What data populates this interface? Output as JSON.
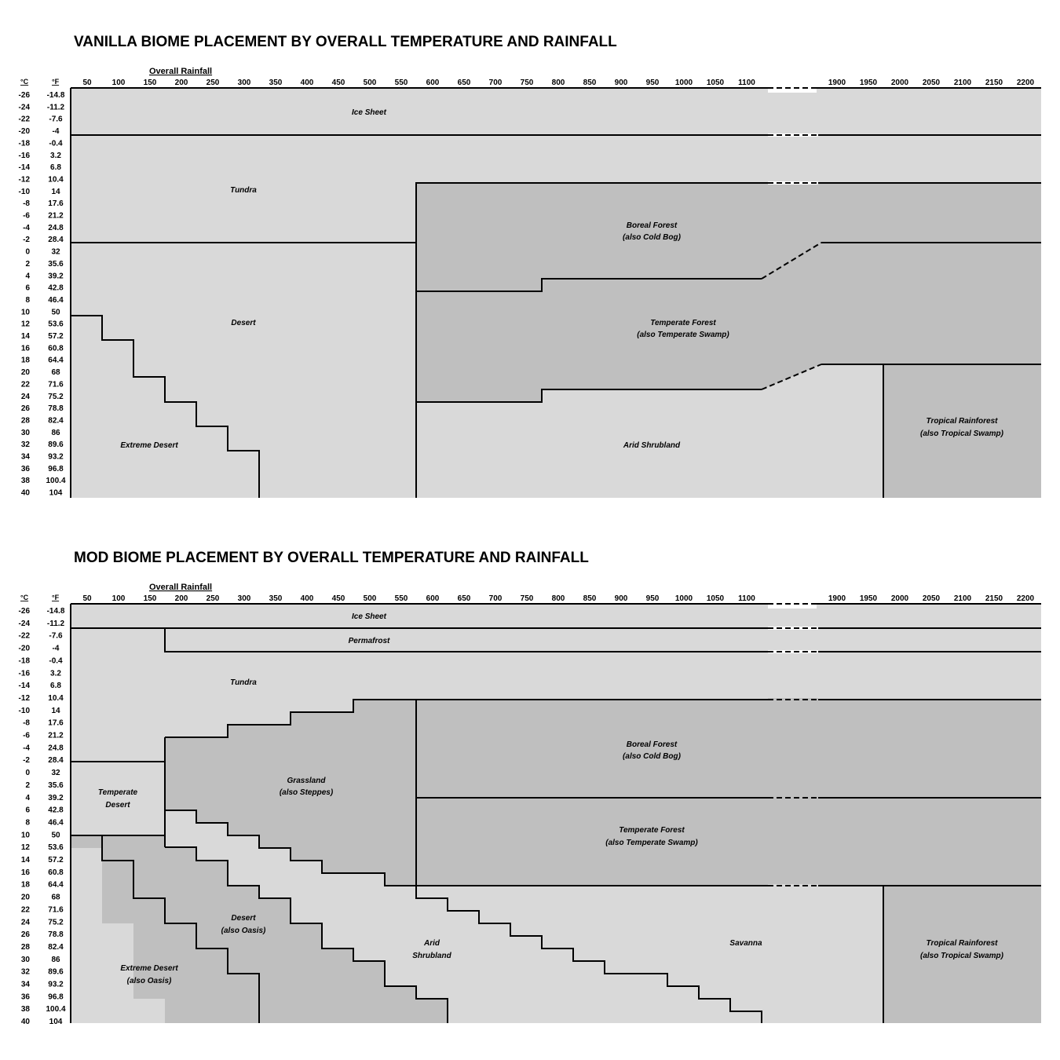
{
  "vanilla": {
    "title": "VANILLA BIOME PLACEMENT BY OVERALL TEMPERATURE AND RAINFALL",
    "rain_title": "Overall Rainfall",
    "unit_c": "°C",
    "unit_f": "°F",
    "celsius": [
      "-26",
      "-24",
      "-22",
      "-20",
      "-18",
      "-16",
      "-14",
      "-12",
      "-10",
      "-8",
      "-6",
      "-4",
      "-2",
      "0",
      "2",
      "4",
      "6",
      "8",
      "10",
      "12",
      "14",
      "16",
      "18",
      "20",
      "22",
      "24",
      "26",
      "28",
      "30",
      "32",
      "34",
      "36",
      "38",
      "40"
    ],
    "fahrenheit": [
      "-14.8",
      "-11.2",
      "-7.6",
      "-4",
      "-0.4",
      "3.2",
      "6.8",
      "10.4",
      "14",
      "17.6",
      "21.2",
      "24.8",
      "28.4",
      "32",
      "35.6",
      "39.2",
      "42.8",
      "46.4",
      "50",
      "53.6",
      "57.2",
      "60.8",
      "64.4",
      "68",
      "71.6",
      "75.2",
      "78.8",
      "82.4",
      "86",
      "89.6",
      "93.2",
      "96.8",
      "100.4",
      "104"
    ],
    "rainfall": [
      "50",
      "100",
      "150",
      "200",
      "250",
      "300",
      "350",
      "400",
      "450",
      "500",
      "550",
      "600",
      "650",
      "700",
      "750",
      "800",
      "850",
      "900",
      "950",
      "1000",
      "1050",
      "1100",
      "1900",
      "1950",
      "2000",
      "2050",
      "2100",
      "2150",
      "2200"
    ],
    "biomes": {
      "ice_sheet": "Ice Sheet",
      "tundra": "Tundra",
      "boreal": "Boreal Forest",
      "boreal_sub": "(also Cold Bog)",
      "desert": "Desert",
      "temperate_forest": "Temperate Forest",
      "temperate_forest_sub": "(also Temperate Swamp)",
      "tropical": "Tropical Rainforest",
      "tropical_sub": "(also Tropical Swamp)",
      "extreme_desert": "Extreme Desert",
      "arid": "Arid Shrubland"
    }
  },
  "mod": {
    "title": "MOD BIOME PLACEMENT BY OVERALL TEMPERATURE AND RAINFALL",
    "rain_title": "Overall Rainfall",
    "unit_c": "°C",
    "unit_f": "°F",
    "celsius": [
      "-26",
      "-24",
      "-22",
      "-20",
      "-18",
      "-16",
      "-14",
      "-12",
      "-10",
      "-8",
      "-6",
      "-4",
      "-2",
      "0",
      "2",
      "4",
      "6",
      "8",
      "10",
      "12",
      "14",
      "16",
      "18",
      "20",
      "22",
      "24",
      "26",
      "28",
      "30",
      "32",
      "34",
      "36",
      "38",
      "40"
    ],
    "fahrenheit": [
      "-14.8",
      "-11.2",
      "-7.6",
      "-4",
      "-0.4",
      "3.2",
      "6.8",
      "10.4",
      "14",
      "17.6",
      "21.2",
      "24.8",
      "28.4",
      "32",
      "35.6",
      "39.2",
      "42.8",
      "46.4",
      "50",
      "53.6",
      "57.2",
      "60.8",
      "64.4",
      "68",
      "71.6",
      "75.2",
      "78.8",
      "82.4",
      "86",
      "89.6",
      "93.2",
      "96.8",
      "100.4",
      "104"
    ],
    "rainfall": [
      "50",
      "100",
      "150",
      "200",
      "250",
      "300",
      "350",
      "400",
      "450",
      "500",
      "550",
      "600",
      "650",
      "700",
      "750",
      "800",
      "850",
      "900",
      "950",
      "1000",
      "1050",
      "1100",
      "1900",
      "1950",
      "2000",
      "2050",
      "2100",
      "2150",
      "2200"
    ],
    "biomes": {
      "ice_sheet": "Ice Sheet",
      "permafrost": "Permafrost",
      "tundra": "Tundra",
      "boreal": "Boreal Forest",
      "boreal_sub": "(also Cold Bog)",
      "grassland": "Grassland",
      "grassland_sub": "(also Steppes)",
      "temperate_desert": "Temperate",
      "temperate_desert_sub": "Desert",
      "temperate_forest": "Temperate Forest",
      "temperate_forest_sub": "(also Temperate Swamp)",
      "desert": "Desert",
      "desert_sub": "(also Oasis)",
      "arid": "Arid",
      "arid_sub": "Shrubland",
      "savanna": "Savanna",
      "tropical": "Tropical Rainforest",
      "tropical_sub": "(also Tropical Swamp)",
      "extreme_desert": "Extreme Desert",
      "extreme_desert_sub": "(also Oasis)"
    }
  }
}
